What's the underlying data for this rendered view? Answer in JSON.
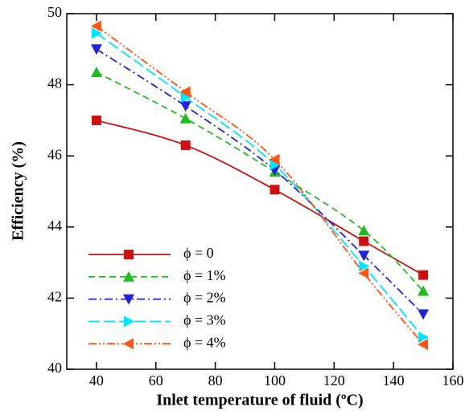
{
  "chart_data": {
    "type": "line",
    "x_label": "Inlet temperature of fluid (ºC)",
    "y_label": "Efficiency (%)",
    "x": [
      40,
      70,
      100,
      130,
      150
    ],
    "xlim": [
      30,
      160
    ],
    "xticks": [
      40,
      60,
      80,
      100,
      120,
      140,
      160
    ],
    "ylim": [
      40,
      50
    ],
    "yticks": [
      40,
      42,
      44,
      46,
      48,
      50
    ],
    "legend": "lower left",
    "series": [
      {
        "name": "ϕ = 0",
        "color": "#cc1111",
        "marker": "square",
        "dash": "solid",
        "values": [
          47.0,
          46.3,
          45.05,
          43.6,
          42.65
        ]
      },
      {
        "name": "ϕ = 1%",
        "color": "#22bb22",
        "marker": "triangle-up",
        "dash": "dash",
        "values": [
          48.35,
          47.05,
          45.55,
          43.9,
          42.2
        ]
      },
      {
        "name": "ϕ = 2%",
        "color": "#2222dd",
        "marker": "triangle-down",
        "dash": "dashdot",
        "values": [
          49.0,
          47.4,
          45.6,
          43.2,
          41.55
        ]
      },
      {
        "name": "ϕ = 3%",
        "color": "#00e5ff",
        "marker": "triangle-right",
        "dash": "longdash",
        "values": [
          49.45,
          47.65,
          45.75,
          42.9,
          40.9
        ]
      },
      {
        "name": "ϕ = 4%",
        "color": "#ff5511",
        "marker": "triangle-left",
        "dash": "dashdotdot",
        "values": [
          49.65,
          47.8,
          45.9,
          42.7,
          40.7
        ]
      }
    ]
  }
}
